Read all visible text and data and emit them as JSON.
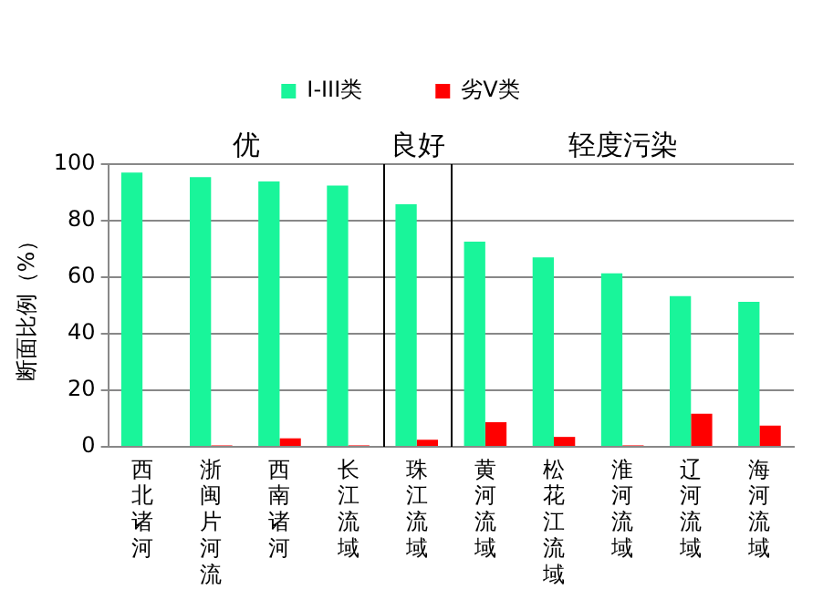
{
  "chart_data": {
    "type": "bar",
    "ylabel": "断面比例（%）",
    "categories": [
      "西北诸河",
      "浙闽片河流",
      "西南诸河",
      "长江流域",
      "珠江流域",
      "黄河流域",
      "松花江流域",
      "淮河流域",
      "辽河流域",
      "海河流域"
    ],
    "series": [
      {
        "name": "I-III类",
        "color": "#19f59a",
        "values": [
          97,
          95.4,
          93.9,
          92.4,
          85.8,
          72.6,
          67,
          61.4,
          53.3,
          51.3
        ]
      },
      {
        "name": "劣V类",
        "color": "#ff0000",
        "values": [
          0,
          0.5,
          3,
          0.5,
          2.5,
          8.7,
          3.5,
          0.5,
          11.7,
          7.5
        ]
      }
    ],
    "annotations": [
      "优",
      "良好",
      "轻度污染"
    ],
    "ylim": [
      0,
      100
    ],
    "yticks": [
      0,
      20,
      40,
      60,
      80,
      100
    ],
    "grid": "y",
    "legend": "top"
  }
}
